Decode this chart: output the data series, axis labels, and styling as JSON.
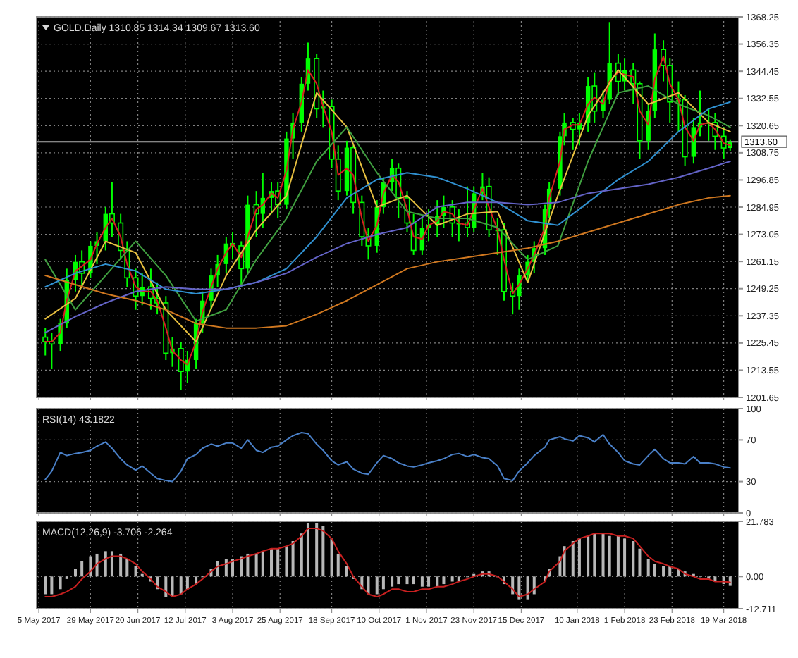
{
  "chart_data": [
    {
      "type": "candlestick",
      "title": "GOLD.Daily 1310.85 1314.34 1309.67 1313.60",
      "color": "#00ff00",
      "grid": true,
      "tick_labels": "y",
      "xlim": [
        "2017-05-04",
        "2018-03-26"
      ],
      "xticks": [
        {
          "value": "2017-05-05",
          "label": null
        },
        {
          "value": "2017-05-29",
          "label": null
        },
        {
          "value": "2017-06-20",
          "label": null
        },
        {
          "value": "2017-07-12",
          "label": null
        },
        {
          "value": "2017-08-03",
          "label": null
        },
        {
          "value": "2017-08-25",
          "label": null
        },
        {
          "value": "2017-09-18",
          "label": null
        },
        {
          "value": "2017-10-10",
          "label": null
        },
        {
          "value": "2017-11-01",
          "label": null
        },
        {
          "value": "2017-11-23",
          "label": null
        },
        {
          "value": "2017-12-15",
          "label": null
        },
        {
          "value": "2018-01-10",
          "label": null
        },
        {
          "value": "2018-02-01",
          "label": null
        },
        {
          "value": "2018-02-23",
          "label": null
        },
        {
          "value": "2018-03-19",
          "label": null
        }
      ],
      "ylim": [
        1201.65,
        1368.25
      ],
      "yticks": [
        1201.65,
        1213.55,
        1225.45,
        1237.35,
        1249.25,
        1261.15,
        1273.05,
        1284.95,
        1296.85,
        1308.75,
        1320.65,
        1332.55,
        1344.45,
        1356.35,
        1368.25
      ],
      "ref_lines": [
        {
          "axis": "y",
          "value": 1313.6,
          "label": "1313.60",
          "color": "#b0b0b0"
        }
      ],
      "x": [
        "2017-05-08",
        "2017-05-11",
        "2017-05-15",
        "2017-05-18",
        "2017-05-22",
        "2017-05-25",
        "2017-05-29",
        "2017-06-01",
        "2017-06-05",
        "2017-06-08",
        "2017-06-12",
        "2017-06-15",
        "2017-06-19",
        "2017-06-22",
        "2017-06-26",
        "2017-06-29",
        "2017-07-03",
        "2017-07-06",
        "2017-07-10",
        "2017-07-13",
        "2017-07-17",
        "2017-07-20",
        "2017-07-24",
        "2017-07-27",
        "2017-07-31",
        "2017-08-03",
        "2017-08-07",
        "2017-08-10",
        "2017-08-14",
        "2017-08-17",
        "2017-08-21",
        "2017-08-24",
        "2017-08-28",
        "2017-08-31",
        "2017-09-04",
        "2017-09-07",
        "2017-09-11",
        "2017-09-14",
        "2017-09-18",
        "2017-09-21",
        "2017-09-25",
        "2017-09-28",
        "2017-10-02",
        "2017-10-05",
        "2017-10-09",
        "2017-10-12",
        "2017-10-16",
        "2017-10-19",
        "2017-10-23",
        "2017-10-26",
        "2017-10-30",
        "2017-11-02",
        "2017-11-06",
        "2017-11-09",
        "2017-11-13",
        "2017-11-16",
        "2017-11-20",
        "2017-11-23",
        "2017-11-27",
        "2017-11-30",
        "2017-12-04",
        "2017-12-07",
        "2017-12-11",
        "2017-12-14",
        "2017-12-18",
        "2017-12-21",
        "2017-12-26",
        "2017-12-28",
        "2018-01-02",
        "2018-01-04",
        "2018-01-08",
        "2018-01-11",
        "2018-01-15",
        "2018-01-18",
        "2018-01-22",
        "2018-01-25",
        "2018-01-29",
        "2018-02-01",
        "2018-02-05",
        "2018-02-08",
        "2018-02-12",
        "2018-02-15",
        "2018-02-19",
        "2018-02-22",
        "2018-02-26",
        "2018-03-01",
        "2018-03-05",
        "2018-03-08",
        "2018-03-12",
        "2018-03-15",
        "2018-03-19",
        "2018-03-22"
      ],
      "ohlc": [
        [
          1228,
          1232,
          1220,
          1226
        ],
        [
          1226,
          1230,
          1214,
          1225
        ],
        [
          1225,
          1236,
          1222,
          1234
        ],
        [
          1234,
          1258,
          1232,
          1253
        ],
        [
          1253,
          1264,
          1248,
          1261
        ],
        [
          1261,
          1266,
          1250,
          1256
        ],
        [
          1256,
          1270,
          1254,
          1268
        ],
        [
          1268,
          1274,
          1260,
          1270
        ],
        [
          1270,
          1285,
          1266,
          1282
        ],
        [
          1282,
          1296,
          1272,
          1278
        ],
        [
          1278,
          1282,
          1262,
          1266
        ],
        [
          1266,
          1270,
          1250,
          1254
        ],
        [
          1254,
          1258,
          1240,
          1246
        ],
        [
          1246,
          1256,
          1242,
          1250
        ],
        [
          1250,
          1258,
          1240,
          1245
        ],
        [
          1245,
          1252,
          1238,
          1243
        ],
        [
          1243,
          1246,
          1218,
          1221
        ],
        [
          1221,
          1228,
          1215,
          1223
        ],
        [
          1223,
          1226,
          1205,
          1213
        ],
        [
          1213,
          1222,
          1208,
          1218
        ],
        [
          1218,
          1236,
          1214,
          1234
        ],
        [
          1234,
          1248,
          1230,
          1244
        ],
        [
          1244,
          1258,
          1240,
          1255
        ],
        [
          1255,
          1264,
          1250,
          1260
        ],
        [
          1260,
          1272,
          1256,
          1269
        ],
        [
          1269,
          1274,
          1262,
          1268
        ],
        [
          1268,
          1270,
          1250,
          1258
        ],
        [
          1258,
          1290,
          1256,
          1286
        ],
        [
          1286,
          1292,
          1272,
          1282
        ],
        [
          1282,
          1300,
          1276,
          1289
        ],
        [
          1289,
          1296,
          1282,
          1292
        ],
        [
          1292,
          1296,
          1280,
          1286
        ],
        [
          1286,
          1318,
          1284,
          1315
        ],
        [
          1315,
          1326,
          1306,
          1322
        ],
        [
          1322,
          1342,
          1318,
          1339
        ],
        [
          1339,
          1357,
          1336,
          1350
        ],
        [
          1350,
          1352,
          1324,
          1328
        ],
        [
          1328,
          1336,
          1320,
          1329
        ],
        [
          1329,
          1332,
          1302,
          1306
        ],
        [
          1306,
          1312,
          1288,
          1292
        ],
        [
          1292,
          1314,
          1290,
          1311
        ],
        [
          1311,
          1312,
          1282,
          1287
        ],
        [
          1287,
          1290,
          1268,
          1272
        ],
        [
          1272,
          1276,
          1262,
          1268
        ],
        [
          1268,
          1288,
          1265,
          1285
        ],
        [
          1285,
          1298,
          1282,
          1296
        ],
        [
          1296,
          1306,
          1292,
          1302
        ],
        [
          1302,
          1304,
          1280,
          1289
        ],
        [
          1289,
          1292,
          1274,
          1278
        ],
        [
          1278,
          1282,
          1264,
          1266
        ],
        [
          1266,
          1280,
          1264,
          1276
        ],
        [
          1276,
          1284,
          1270,
          1277
        ],
        [
          1277,
          1288,
          1272,
          1281
        ],
        [
          1281,
          1290,
          1276,
          1285
        ],
        [
          1285,
          1288,
          1272,
          1278
        ],
        [
          1278,
          1284,
          1270,
          1278
        ],
        [
          1278,
          1294,
          1272,
          1276
        ],
        [
          1276,
          1294,
          1274,
          1291
        ],
        [
          1291,
          1300,
          1288,
          1294
        ],
        [
          1294,
          1298,
          1272,
          1275
        ],
        [
          1275,
          1280,
          1264,
          1275
        ],
        [
          1275,
          1278,
          1244,
          1248
        ],
        [
          1248,
          1252,
          1238,
          1246
        ],
        [
          1246,
          1258,
          1240,
          1255
        ],
        [
          1255,
          1264,
          1252,
          1261
        ],
        [
          1261,
          1270,
          1256,
          1267
        ],
        [
          1267,
          1286,
          1264,
          1284
        ],
        [
          1284,
          1296,
          1280,
          1293
        ],
        [
          1293,
          1318,
          1290,
          1316
        ],
        [
          1316,
          1326,
          1312,
          1322
        ],
        [
          1322,
          1324,
          1310,
          1319
        ],
        [
          1319,
          1326,
          1312,
          1322
        ],
        [
          1322,
          1342,
          1318,
          1338
        ],
        [
          1338,
          1344,
          1322,
          1327
        ],
        [
          1327,
          1336,
          1324,
          1332
        ],
        [
          1332,
          1366,
          1330,
          1348
        ],
        [
          1348,
          1352,
          1334,
          1340
        ],
        [
          1340,
          1350,
          1336,
          1345
        ],
        [
          1345,
          1348,
          1330,
          1339
        ],
        [
          1339,
          1340,
          1306,
          1314
        ],
        [
          1314,
          1330,
          1310,
          1327
        ],
        [
          1327,
          1361,
          1324,
          1354
        ],
        [
          1354,
          1358,
          1340,
          1347
        ],
        [
          1347,
          1350,
          1322,
          1331
        ],
        [
          1331,
          1340,
          1318,
          1332
        ],
        [
          1332,
          1334,
          1303,
          1307
        ],
        [
          1307,
          1324,
          1304,
          1320
        ],
        [
          1320,
          1336,
          1316,
          1322
        ],
        [
          1322,
          1328,
          1314,
          1322
        ],
        [
          1322,
          1326,
          1310,
          1316
        ],
        [
          1316,
          1320,
          1306,
          1310.85
        ],
        [
          1310.85,
          1314.34,
          1309.67,
          1313.6
        ]
      ],
      "series": [
        {
          "type": "line",
          "color": "#d82020",
          "values": [
            1226,
            1226,
            1230,
            1244,
            1257,
            1259,
            1262,
            1269,
            1276,
            1280,
            1272,
            1260,
            1250,
            1248,
            1248,
            1244,
            1232,
            1222,
            1218,
            1216,
            1226,
            1239,
            1250,
            1258,
            1265,
            1269,
            1263,
            1272,
            1284,
            1286,
            1291,
            1289,
            1301,
            1319,
            1331,
            1345,
            1339,
            1329,
            1318,
            1299,
            1302,
            1299,
            1280,
            1270,
            1277,
            1291,
            1299,
            1296,
            1284,
            1272,
            1271,
            1277,
            1279,
            1283,
            1282,
            1278,
            1277,
            1284,
            1293,
            1285,
            1275,
            1262,
            1247,
            1251,
            1258,
            1264,
            1276,
            1289,
            1305,
            1319,
            1321,
            1321,
            1330,
            1333,
            1330,
            1340,
            1344,
            1343,
            1342,
            1327,
            1321,
            1341,
            1351,
            1339,
            1332,
            1320,
            1314,
            1321,
            1322,
            1319,
            1313,
            1312
          ]
        },
        {
          "type": "line",
          "color": "#e8c040",
          "x": [
            "2017-05-08",
            "2017-05-22",
            "2017-06-05",
            "2017-06-19",
            "2017-07-03",
            "2017-07-17",
            "2017-07-31",
            "2017-08-14",
            "2017-08-28",
            "2017-09-11",
            "2017-09-25",
            "2017-10-09",
            "2017-10-23",
            "2017-11-06",
            "2017-11-20",
            "2017-12-04",
            "2017-12-18",
            "2018-01-01",
            "2018-01-15",
            "2018-01-29",
            "2018-02-12",
            "2018-02-26",
            "2018-03-12",
            "2018-03-22"
          ],
          "values": [
            1236,
            1245,
            1270,
            1265,
            1240,
            1226,
            1255,
            1275,
            1290,
            1335,
            1320,
            1285,
            1290,
            1277,
            1282,
            1283,
            1252,
            1290,
            1325,
            1345,
            1330,
            1335,
            1322,
            1318
          ]
        },
        {
          "type": "line",
          "color": "#40a040",
          "x": [
            "2017-05-08",
            "2017-05-22",
            "2017-06-05",
            "2017-06-19",
            "2017-07-03",
            "2017-07-17",
            "2017-07-31",
            "2017-08-14",
            "2017-08-28",
            "2017-09-11",
            "2017-09-25",
            "2017-10-09",
            "2017-10-23",
            "2017-11-06",
            "2017-11-20",
            "2017-12-04",
            "2017-12-18",
            "2018-01-01",
            "2018-01-15",
            "2018-01-29",
            "2018-02-12",
            "2018-02-26",
            "2018-03-12",
            "2018-03-22"
          ],
          "values": [
            1262,
            1240,
            1255,
            1270,
            1255,
            1235,
            1240,
            1262,
            1280,
            1305,
            1320,
            1300,
            1283,
            1280,
            1280,
            1276,
            1262,
            1268,
            1305,
            1335,
            1338,
            1330,
            1325,
            1320
          ]
        },
        {
          "type": "line",
          "color": "#3090d0",
          "x": [
            "2017-05-08",
            "2017-05-22",
            "2017-06-05",
            "2017-06-19",
            "2017-07-03",
            "2017-07-17",
            "2017-07-31",
            "2017-08-14",
            "2017-08-28",
            "2017-09-11",
            "2017-09-25",
            "2017-10-09",
            "2017-10-23",
            "2017-11-06",
            "2017-11-20",
            "2017-12-04",
            "2017-12-18",
            "2018-01-01",
            "2018-01-15",
            "2018-01-29",
            "2018-02-12",
            "2018-02-26",
            "2018-03-12",
            "2018-03-22"
          ],
          "values": [
            1250,
            1256,
            1260,
            1257,
            1249,
            1247,
            1249,
            1252,
            1258,
            1272,
            1289,
            1297,
            1300,
            1298,
            1293,
            1287,
            1279,
            1277,
            1287,
            1297,
            1305,
            1318,
            1328,
            1331
          ]
        },
        {
          "type": "line",
          "color": "#6464c8",
          "x": [
            "2017-05-08",
            "2017-05-22",
            "2017-06-05",
            "2017-06-19",
            "2017-07-03",
            "2017-07-17",
            "2017-07-31",
            "2017-08-14",
            "2017-08-28",
            "2017-09-11",
            "2017-09-25",
            "2017-10-09",
            "2017-10-23",
            "2017-11-06",
            "2017-11-20",
            "2017-12-04",
            "2017-12-18",
            "2018-01-01",
            "2018-01-15",
            "2018-01-29",
            "2018-02-12",
            "2018-02-26",
            "2018-03-12",
            "2018-03-22"
          ],
          "values": [
            1230,
            1237,
            1243,
            1248,
            1250,
            1249,
            1249,
            1252,
            1256,
            1263,
            1269,
            1273,
            1276,
            1285,
            1287,
            1287,
            1286,
            1287,
            1291,
            1293,
            1295,
            1298,
            1302,
            1305
          ]
        },
        {
          "type": "line",
          "color": "#d07820",
          "x": [
            "2017-05-08",
            "2017-05-22",
            "2017-06-05",
            "2017-06-19",
            "2017-07-03",
            "2017-07-17",
            "2017-07-31",
            "2017-08-14",
            "2017-08-28",
            "2017-09-11",
            "2017-09-25",
            "2017-10-09",
            "2017-10-23",
            "2017-11-06",
            "2017-11-20",
            "2017-12-04",
            "2017-12-18",
            "2018-01-01",
            "2018-01-15",
            "2018-01-29",
            "2018-02-12",
            "2018-02-26",
            "2018-03-12",
            "2018-03-22"
          ],
          "values": [
            1255,
            1251,
            1247,
            1244,
            1240,
            1234,
            1232,
            1232,
            1233,
            1238,
            1244,
            1251,
            1258,
            1261,
            1263,
            1265,
            1267,
            1270,
            1274,
            1278,
            1282,
            1286,
            1289,
            1290
          ]
        }
      ]
    },
    {
      "type": "line",
      "title": "RSI(14) 43.1822",
      "grid": true,
      "tick_labels": "y",
      "xlim": [
        "2017-05-04",
        "2018-03-26"
      ],
      "xticks": [
        {
          "value": "2017-05-05",
          "label": null
        },
        {
          "value": "2017-05-29",
          "label": null
        },
        {
          "value": "2017-06-20",
          "label": null
        },
        {
          "value": "2017-07-12",
          "label": null
        },
        {
          "value": "2017-08-03",
          "label": null
        },
        {
          "value": "2017-08-25",
          "label": null
        },
        {
          "value": "2017-09-18",
          "label": null
        },
        {
          "value": "2017-10-10",
          "label": null
        },
        {
          "value": "2017-11-01",
          "label": null
        },
        {
          "value": "2017-11-23",
          "label": null
        },
        {
          "value": "2017-12-15",
          "label": null
        },
        {
          "value": "2018-01-10",
          "label": null
        },
        {
          "value": "2018-02-01",
          "label": null
        },
        {
          "value": "2018-02-23",
          "label": null
        },
        {
          "value": "2018-03-19",
          "label": null
        }
      ],
      "ylim": [
        0,
        100
      ],
      "yticks": [
        0,
        30,
        70,
        100
      ],
      "x": [
        "2017-05-08",
        "2017-05-11",
        "2017-05-15",
        "2017-05-18",
        "2017-05-22",
        "2017-05-25",
        "2017-05-29",
        "2017-06-01",
        "2017-06-05",
        "2017-06-08",
        "2017-06-12",
        "2017-06-15",
        "2017-06-19",
        "2017-06-22",
        "2017-06-26",
        "2017-06-29",
        "2017-07-03",
        "2017-07-06",
        "2017-07-10",
        "2017-07-13",
        "2017-07-17",
        "2017-07-20",
        "2017-07-24",
        "2017-07-27",
        "2017-07-31",
        "2017-08-03",
        "2017-08-07",
        "2017-08-10",
        "2017-08-14",
        "2017-08-17",
        "2017-08-21",
        "2017-08-24",
        "2017-08-28",
        "2017-08-31",
        "2017-09-04",
        "2017-09-07",
        "2017-09-11",
        "2017-09-14",
        "2017-09-18",
        "2017-09-21",
        "2017-09-25",
        "2017-09-28",
        "2017-10-02",
        "2017-10-05",
        "2017-10-09",
        "2017-10-12",
        "2017-10-16",
        "2017-10-19",
        "2017-10-23",
        "2017-10-26",
        "2017-10-30",
        "2017-11-02",
        "2017-11-06",
        "2017-11-09",
        "2017-11-13",
        "2017-11-16",
        "2017-11-20",
        "2017-11-23",
        "2017-11-27",
        "2017-11-30",
        "2017-12-04",
        "2017-12-07",
        "2017-12-11",
        "2017-12-14",
        "2017-12-18",
        "2017-12-21",
        "2017-12-26",
        "2017-12-28",
        "2018-01-02",
        "2018-01-04",
        "2018-01-08",
        "2018-01-11",
        "2018-01-15",
        "2018-01-18",
        "2018-01-22",
        "2018-01-25",
        "2018-01-29",
        "2018-02-01",
        "2018-02-05",
        "2018-02-08",
        "2018-02-12",
        "2018-02-15",
        "2018-02-19",
        "2018-02-22",
        "2018-02-26",
        "2018-03-01",
        "2018-03-05",
        "2018-03-08",
        "2018-03-12",
        "2018-03-15",
        "2018-03-19",
        "2018-03-22"
      ],
      "series": [
        {
          "color": "#4a80c8",
          "values": [
            32,
            40,
            58,
            55,
            57,
            58,
            60,
            64,
            68,
            62,
            52,
            46,
            41,
            45,
            38,
            33,
            31,
            30,
            40,
            52,
            56,
            62,
            66,
            64,
            67,
            67,
            62,
            70,
            60,
            58,
            63,
            64,
            70,
            74,
            77,
            76,
            66,
            60,
            50,
            46,
            49,
            42,
            38,
            37,
            48,
            55,
            52,
            48,
            45,
            44,
            46,
            48,
            50,
            52,
            56,
            57,
            54,
            56,
            53,
            52,
            45,
            33,
            31,
            40,
            48,
            55,
            63,
            70,
            73,
            71,
            69,
            74,
            72,
            68,
            75,
            66,
            58,
            50,
            47,
            46,
            55,
            61,
            52,
            48,
            48,
            47,
            54,
            48,
            48,
            47,
            44,
            43
          ]
        }
      ]
    },
    {
      "type": "bar",
      "title": "MACD(12,26,9) -3.706 -2.264",
      "grid": true,
      "xlim": [
        "2017-05-04",
        "2018-03-26"
      ],
      "xticks": [
        {
          "value": "2017-05-05",
          "label": "5 May 2017"
        },
        {
          "value": "2017-05-29",
          "label": "29 May 2017"
        },
        {
          "value": "2017-06-20",
          "label": "20 Jun 2017"
        },
        {
          "value": "2017-07-12",
          "label": "12 Jul 2017"
        },
        {
          "value": "2017-08-03",
          "label": "3 Aug 2017"
        },
        {
          "value": "2017-08-25",
          "label": "25 Aug 2017"
        },
        {
          "value": "2017-09-18",
          "label": "18 Sep 2017"
        },
        {
          "value": "2017-10-10",
          "label": "10 Oct 2017"
        },
        {
          "value": "2017-11-01",
          "label": "1 Nov 2017"
        },
        {
          "value": "2017-11-23",
          "label": "23 Nov 2017"
        },
        {
          "value": "2017-12-15",
          "label": "15 Dec 2017"
        },
        {
          "value": "2018-01-10",
          "label": "10 Jan 2018"
        },
        {
          "value": "2018-02-01",
          "label": "1 Feb 2018"
        },
        {
          "value": "2018-02-23",
          "label": "23 Feb 2018"
        },
        {
          "value": "2018-03-19",
          "label": "19 Mar 2018"
        }
      ],
      "ylim": [
        -12.711,
        21.783
      ],
      "yticks": [
        -12.711,
        {
          "value": 0,
          "label": "0.00"
        },
        21.783
      ],
      "x": [
        "2017-05-08",
        "2017-05-11",
        "2017-05-15",
        "2017-05-18",
        "2017-05-22",
        "2017-05-25",
        "2017-05-29",
        "2017-06-01",
        "2017-06-05",
        "2017-06-08",
        "2017-06-12",
        "2017-06-15",
        "2017-06-19",
        "2017-06-22",
        "2017-06-26",
        "2017-06-29",
        "2017-07-03",
        "2017-07-06",
        "2017-07-10",
        "2017-07-13",
        "2017-07-17",
        "2017-07-20",
        "2017-07-24",
        "2017-07-27",
        "2017-07-31",
        "2017-08-03",
        "2017-08-07",
        "2017-08-10",
        "2017-08-14",
        "2017-08-17",
        "2017-08-21",
        "2017-08-24",
        "2017-08-28",
        "2017-08-31",
        "2017-09-04",
        "2017-09-07",
        "2017-09-11",
        "2017-09-14",
        "2017-09-18",
        "2017-09-21",
        "2017-09-25",
        "2017-09-28",
        "2017-10-02",
        "2017-10-05",
        "2017-10-09",
        "2017-10-12",
        "2017-10-16",
        "2017-10-19",
        "2017-10-23",
        "2017-10-26",
        "2017-10-30",
        "2017-11-02",
        "2017-11-06",
        "2017-11-09",
        "2017-11-13",
        "2017-11-16",
        "2017-11-20",
        "2017-11-23",
        "2017-11-27",
        "2017-11-30",
        "2017-12-04",
        "2017-12-07",
        "2017-12-11",
        "2017-12-14",
        "2017-12-18",
        "2017-12-21",
        "2017-12-26",
        "2017-12-28",
        "2018-01-02",
        "2018-01-04",
        "2018-01-08",
        "2018-01-11",
        "2018-01-15",
        "2018-01-18",
        "2018-01-22",
        "2018-01-25",
        "2018-01-29",
        "2018-02-01",
        "2018-02-05",
        "2018-02-08",
        "2018-02-12",
        "2018-02-15",
        "2018-02-19",
        "2018-02-22",
        "2018-02-26",
        "2018-03-01",
        "2018-03-05",
        "2018-03-08",
        "2018-03-12",
        "2018-03-15",
        "2018-03-19",
        "2018-03-22"
      ],
      "series": [
        {
          "color": "#b8b8b8",
          "values": [
            -7,
            -7,
            -5,
            -1,
            3,
            6,
            8,
            9,
            10,
            10,
            9,
            7,
            4,
            1,
            -2,
            -5,
            -8,
            -8,
            -7,
            -5,
            -3,
            0,
            3,
            6,
            7,
            7,
            8,
            9,
            9,
            10,
            11,
            11,
            12,
            14,
            17,
            21,
            21,
            20,
            15,
            9,
            4,
            -1,
            -5,
            -7,
            -7,
            -5,
            -4,
            -3,
            -3,
            -3,
            -4,
            -4,
            -4,
            -3,
            -2,
            -2,
            0,
            1,
            2,
            2,
            0,
            -3,
            -7,
            -9,
            -9,
            -7,
            -2,
            3,
            8,
            12,
            14,
            15,
            16,
            17,
            17,
            16,
            16,
            15,
            14,
            11,
            7,
            5,
            4,
            4,
            3,
            2,
            1,
            0,
            -1,
            -2,
            -3,
            -3.7
          ]
        },
        {
          "type": "line",
          "color": "#c82020",
          "values": [
            -8,
            -8,
            -7,
            -6,
            -4,
            -1,
            2,
            5,
            7,
            8,
            8,
            7,
            5,
            2,
            -1,
            -4,
            -6,
            -8,
            -7,
            -5,
            -3,
            -1,
            2,
            4,
            5,
            6,
            7,
            8,
            9,
            10,
            11,
            11,
            12,
            13,
            16,
            19,
            19,
            18,
            15,
            10,
            5,
            0,
            -4,
            -7,
            -8,
            -7,
            -5,
            -5,
            -6,
            -6,
            -5,
            -5,
            -4,
            -4,
            -3,
            -2,
            -1,
            0,
            1,
            1,
            0,
            -2,
            -5,
            -8,
            -7,
            -5,
            -2,
            2,
            6,
            10,
            13,
            15,
            16,
            17,
            17,
            17,
            16,
            16,
            15,
            12,
            8,
            6,
            5,
            4,
            3,
            1,
            0,
            -1,
            -1,
            -2,
            -2,
            -2.3
          ]
        }
      ]
    }
  ]
}
